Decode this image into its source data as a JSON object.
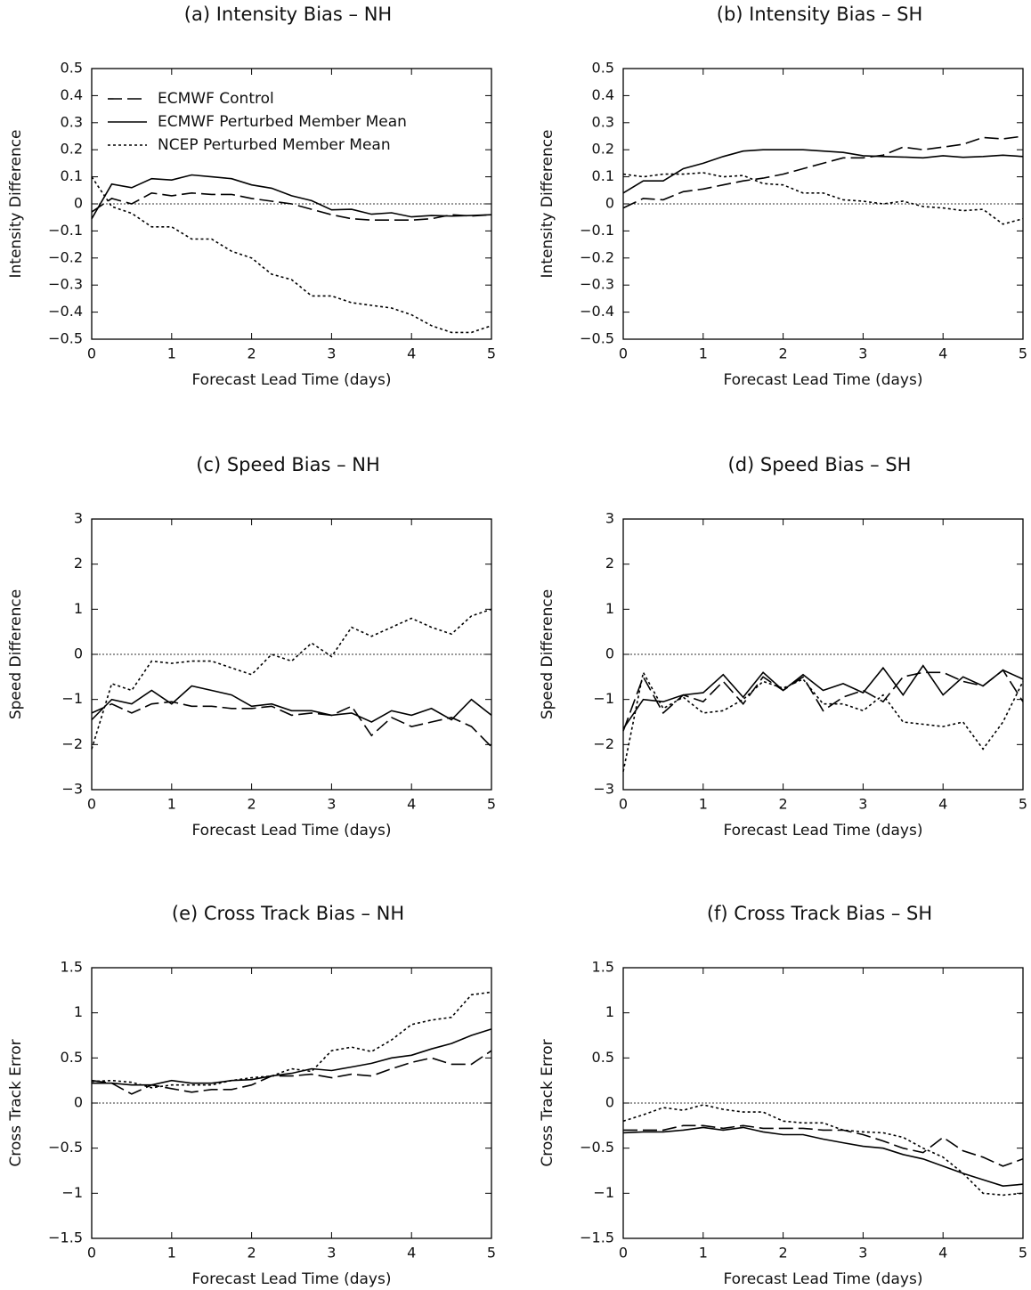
{
  "chart_data": [
    {
      "type": "line",
      "title": "(a) Intensity Bias – NH",
      "xlabel": "Forecast Lead Time (days)",
      "ylabel": "Intensity Difference",
      "x": [
        0,
        0.25,
        0.5,
        0.75,
        1,
        1.25,
        1.5,
        1.75,
        2,
        2.25,
        2.5,
        2.75,
        3,
        3.25,
        3.5,
        3.75,
        4,
        4.25,
        4.5,
        4.75,
        5
      ],
      "xlim": [
        0,
        5
      ],
      "xticks": [
        0,
        1,
        2,
        3,
        4,
        5
      ],
      "ylim": [
        -0.5,
        0.5
      ],
      "yticks": [
        {
          "value": -0.5,
          "label": "−0.5"
        },
        {
          "value": -0.4,
          "label": "−0.4"
        },
        {
          "value": -0.3,
          "label": "−0.3"
        },
        {
          "value": -0.2,
          "label": "−0.2"
        },
        {
          "value": -0.1,
          "label": "−0.1"
        },
        0,
        0.1,
        0.2,
        0.3,
        0.4,
        0.5
      ],
      "zero_line": true,
      "legend": "upper left",
      "series": [
        {
          "name": "ECMWF Control",
          "color": "#000000",
          "dash": "dashed",
          "values": [
            -0.03,
            0.02,
            0.0,
            0.04,
            0.03,
            0.04,
            0.035,
            0.035,
            0.02,
            0.01,
            0.0,
            -0.02,
            -0.04,
            -0.055,
            -0.06,
            -0.06,
            -0.06,
            -0.055,
            -0.04,
            -0.045,
            -0.04
          ]
        },
        {
          "name": "ECMWF Perturbed Member Mean",
          "color": "#000000",
          "dash": "solid",
          "values": [
            -0.055,
            0.073,
            0.06,
            0.093,
            0.088,
            0.107,
            0.1,
            0.093,
            0.07,
            0.058,
            0.03,
            0.012,
            -0.022,
            -0.02,
            -0.038,
            -0.033,
            -0.048,
            -0.043,
            -0.045,
            -0.043,
            -0.04
          ]
        },
        {
          "name": "NCEP Perturbed Member Mean",
          "color": "#000000",
          "dash": "dotted",
          "values": [
            0.1,
            -0.01,
            -0.035,
            -0.085,
            -0.085,
            -0.13,
            -0.13,
            -0.175,
            -0.2,
            -0.26,
            -0.28,
            -0.34,
            -0.34,
            -0.365,
            -0.375,
            -0.385,
            -0.41,
            -0.45,
            -0.475,
            -0.475,
            -0.45
          ]
        }
      ]
    },
    {
      "type": "line",
      "title": "(b) Intensity Bias – SH",
      "xlabel": "Forecast Lead Time (days)",
      "ylabel": "Intensity Difference",
      "x": [
        0,
        0.25,
        0.5,
        0.75,
        1,
        1.25,
        1.5,
        1.75,
        2,
        2.25,
        2.5,
        2.75,
        3,
        3.25,
        3.5,
        3.75,
        4,
        4.25,
        4.5,
        4.75,
        5
      ],
      "xlim": [
        0,
        5
      ],
      "xticks": [
        0,
        1,
        2,
        3,
        4,
        5
      ],
      "ylim": [
        -0.5,
        0.5
      ],
      "yticks": [
        {
          "value": -0.5,
          "label": "−0.5"
        },
        {
          "value": -0.4,
          "label": "−0.4"
        },
        {
          "value": -0.3,
          "label": "−0.3"
        },
        {
          "value": -0.2,
          "label": "−0.2"
        },
        {
          "value": -0.1,
          "label": "−0.1"
        },
        0,
        0.1,
        0.2,
        0.3,
        0.4,
        0.5
      ],
      "zero_line": true,
      "series": [
        {
          "color": "#000000",
          "dash": "dashed",
          "values": [
            -0.015,
            0.02,
            0.015,
            0.045,
            0.055,
            0.07,
            0.085,
            0.095,
            0.11,
            0.13,
            0.15,
            0.17,
            0.17,
            0.18,
            0.21,
            0.2,
            0.21,
            0.22,
            0.245,
            0.24,
            0.25
          ]
        },
        {
          "color": "#000000",
          "dash": "solid",
          "values": [
            0.04,
            0.085,
            0.085,
            0.13,
            0.15,
            0.175,
            0.195,
            0.2,
            0.2,
            0.2,
            0.195,
            0.19,
            0.178,
            0.175,
            0.173,
            0.17,
            0.178,
            0.172,
            0.175,
            0.18,
            0.175
          ]
        },
        {
          "color": "#000000",
          "dash": "dotted",
          "values": [
            0.11,
            0.1,
            0.11,
            0.11,
            0.115,
            0.1,
            0.105,
            0.075,
            0.07,
            0.04,
            0.04,
            0.015,
            0.01,
            0.0,
            0.01,
            -0.01,
            -0.015,
            -0.025,
            -0.02,
            -0.075,
            -0.055
          ]
        }
      ]
    },
    {
      "type": "line",
      "title": "(c) Speed Bias – NH",
      "xlabel": "Forecast Lead Time (days)",
      "ylabel": "Speed Difference",
      "x": [
        0,
        0.25,
        0.5,
        0.75,
        1,
        1.25,
        1.5,
        1.75,
        2,
        2.25,
        2.5,
        2.75,
        3,
        3.25,
        3.5,
        3.75,
        4,
        4.25,
        4.5,
        4.75,
        5
      ],
      "xlim": [
        0,
        5
      ],
      "xticks": [
        0,
        1,
        2,
        3,
        4,
        5
      ],
      "ylim": [
        -3,
        3
      ],
      "yticks": [
        {
          "value": -3,
          "label": "−3"
        },
        {
          "value": -2,
          "label": "−2"
        },
        {
          "value": -1,
          "label": "−1"
        },
        0,
        1,
        2,
        3
      ],
      "zero_line": true,
      "series": [
        {
          "color": "#000000",
          "dash": "dashed",
          "values": [
            -1.3,
            -1.1,
            -1.3,
            -1.1,
            -1.05,
            -1.15,
            -1.15,
            -1.2,
            -1.2,
            -1.15,
            -1.35,
            -1.3,
            -1.35,
            -1.15,
            -1.8,
            -1.4,
            -1.6,
            -1.5,
            -1.4,
            -1.6,
            -2.05
          ]
        },
        {
          "color": "#000000",
          "dash": "solid",
          "values": [
            -1.45,
            -1.0,
            -1.1,
            -0.8,
            -1.1,
            -0.7,
            -0.8,
            -0.9,
            -1.15,
            -1.1,
            -1.25,
            -1.25,
            -1.35,
            -1.3,
            -1.5,
            -1.25,
            -1.35,
            -1.2,
            -1.45,
            -1.0,
            -1.35
          ]
        },
        {
          "color": "#000000",
          "dash": "dotted",
          "values": [
            -2.1,
            -0.65,
            -0.8,
            -0.15,
            -0.2,
            -0.15,
            -0.15,
            -0.3,
            -0.45,
            0.0,
            -0.15,
            0.25,
            -0.05,
            0.6,
            0.4,
            0.6,
            0.8,
            0.6,
            0.45,
            0.85,
            1.0
          ]
        }
      ]
    },
    {
      "type": "line",
      "title": "(d) Speed Bias – SH",
      "xlabel": "Forecast Lead Time (days)",
      "ylabel": "Speed Difference",
      "x": [
        0,
        0.25,
        0.5,
        0.75,
        1,
        1.25,
        1.5,
        1.75,
        2,
        2.25,
        2.5,
        2.75,
        3,
        3.25,
        3.5,
        3.75,
        4,
        4.25,
        4.5,
        4.75,
        5
      ],
      "xlim": [
        0,
        5
      ],
      "xticks": [
        0,
        1,
        2,
        3,
        4,
        5
      ],
      "ylim": [
        -3,
        3
      ],
      "yticks": [
        {
          "value": -3,
          "label": "−3"
        },
        {
          "value": -2,
          "label": "−2"
        },
        {
          "value": -1,
          "label": "−1"
        },
        0,
        1,
        2,
        3
      ],
      "zero_line": true,
      "series": [
        {
          "color": "#000000",
          "dash": "dashed",
          "values": [
            -1.7,
            -0.5,
            -1.3,
            -0.9,
            -1.05,
            -0.6,
            -1.1,
            -0.5,
            -0.8,
            -0.5,
            -1.25,
            -0.95,
            -0.8,
            -1.05,
            -0.5,
            -0.4,
            -0.4,
            -0.6,
            -0.7,
            -0.35,
            -1.05
          ]
        },
        {
          "color": "#000000",
          "dash": "solid",
          "values": [
            -1.65,
            -1.0,
            -1.05,
            -0.9,
            -0.85,
            -0.45,
            -0.95,
            -0.4,
            -0.8,
            -0.45,
            -0.8,
            -0.65,
            -0.85,
            -0.3,
            -0.9,
            -0.25,
            -0.9,
            -0.5,
            -0.7,
            -0.35,
            -0.55
          ]
        },
        {
          "color": "#000000",
          "dash": "dotted",
          "values": [
            -2.6,
            -0.4,
            -1.2,
            -0.95,
            -1.3,
            -1.25,
            -1.0,
            -0.6,
            -0.75,
            -0.55,
            -1.1,
            -1.1,
            -1.25,
            -0.9,
            -1.5,
            -1.55,
            -1.6,
            -1.5,
            -2.1,
            -1.5,
            -0.6
          ]
        }
      ]
    },
    {
      "type": "line",
      "title": "(e) Cross Track Bias – NH",
      "xlabel": "Forecast Lead Time (days)",
      "ylabel": "Cross Track Error",
      "x": [
        0,
        0.25,
        0.5,
        0.75,
        1,
        1.25,
        1.5,
        1.75,
        2,
        2.25,
        2.5,
        2.75,
        3,
        3.25,
        3.5,
        3.75,
        4,
        4.25,
        4.5,
        4.75,
        5
      ],
      "xlim": [
        0,
        5
      ],
      "xticks": [
        0,
        1,
        2,
        3,
        4,
        5
      ],
      "ylim": [
        -1.5,
        1.5
      ],
      "yticks": [
        {
          "value": -1.5,
          "label": "−1.5"
        },
        {
          "value": -1,
          "label": "−1"
        },
        {
          "value": -0.5,
          "label": "−0.5"
        },
        0,
        0.5,
        1,
        1.5
      ],
      "zero_line": true,
      "series": [
        {
          "color": "#000000",
          "dash": "dashed",
          "values": [
            0.25,
            0.22,
            0.1,
            0.2,
            0.16,
            0.12,
            0.15,
            0.15,
            0.2,
            0.3,
            0.3,
            0.32,
            0.28,
            0.32,
            0.3,
            0.38,
            0.45,
            0.5,
            0.43,
            0.43,
            0.58
          ]
        },
        {
          "color": "#000000",
          "dash": "solid",
          "values": [
            0.22,
            0.22,
            0.2,
            0.2,
            0.25,
            0.22,
            0.22,
            0.25,
            0.26,
            0.3,
            0.33,
            0.38,
            0.36,
            0.4,
            0.44,
            0.5,
            0.53,
            0.6,
            0.66,
            0.75,
            0.82
          ]
        },
        {
          "color": "#000000",
          "dash": "dotted",
          "values": [
            0.24,
            0.25,
            0.23,
            0.17,
            0.2,
            0.2,
            0.2,
            0.25,
            0.28,
            0.3,
            0.38,
            0.35,
            0.58,
            0.62,
            0.57,
            0.7,
            0.87,
            0.92,
            0.95,
            1.2,
            1.23
          ]
        }
      ]
    },
    {
      "type": "line",
      "title": "(f) Cross Track Bias – SH",
      "xlabel": "Forecast Lead Time (days)",
      "ylabel": "Cross Track Error",
      "x": [
        0,
        0.25,
        0.5,
        0.75,
        1,
        1.25,
        1.5,
        1.75,
        2,
        2.25,
        2.5,
        2.75,
        3,
        3.25,
        3.5,
        3.75,
        4,
        4.25,
        4.5,
        4.75,
        5
      ],
      "xlim": [
        0,
        5
      ],
      "xticks": [
        0,
        1,
        2,
        3,
        4,
        5
      ],
      "ylim": [
        -1.5,
        1.5
      ],
      "yticks": [
        {
          "value": -1.5,
          "label": "−1.5"
        },
        {
          "value": -1,
          "label": "−1"
        },
        {
          "value": -0.5,
          "label": "−0.5"
        },
        0,
        0.5,
        1,
        1.5
      ],
      "zero_line": true,
      "series": [
        {
          "color": "#000000",
          "dash": "dashed",
          "values": [
            -0.3,
            -0.3,
            -0.3,
            -0.25,
            -0.25,
            -0.28,
            -0.25,
            -0.28,
            -0.28,
            -0.28,
            -0.3,
            -0.3,
            -0.35,
            -0.42,
            -0.5,
            -0.55,
            -0.38,
            -0.53,
            -0.6,
            -0.7,
            -0.62
          ]
        },
        {
          "color": "#000000",
          "dash": "solid",
          "values": [
            -0.33,
            -0.32,
            -0.32,
            -0.3,
            -0.27,
            -0.3,
            -0.27,
            -0.32,
            -0.35,
            -0.35,
            -0.4,
            -0.44,
            -0.48,
            -0.5,
            -0.57,
            -0.62,
            -0.7,
            -0.78,
            -0.85,
            -0.92,
            -0.9
          ]
        },
        {
          "color": "#000000",
          "dash": "dotted",
          "values": [
            -0.2,
            -0.13,
            -0.05,
            -0.08,
            -0.02,
            -0.07,
            -0.1,
            -0.1,
            -0.2,
            -0.22,
            -0.22,
            -0.3,
            -0.32,
            -0.33,
            -0.38,
            -0.5,
            -0.6,
            -0.78,
            -1.0,
            -1.02,
            -1.0
          ]
        }
      ]
    }
  ]
}
